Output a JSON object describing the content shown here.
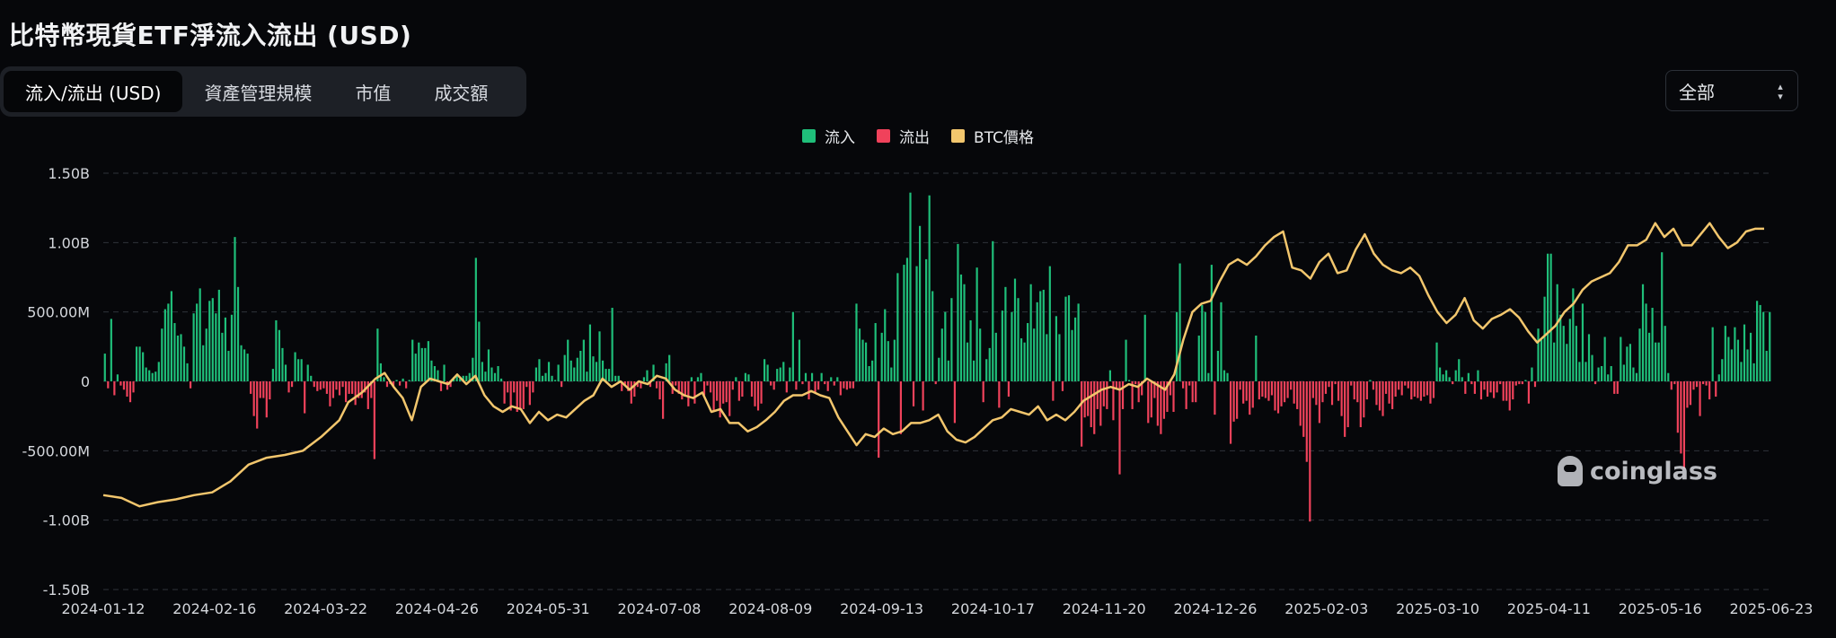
{
  "header": {
    "title": "比特幣現貨ETF淨流入流出 (USD)"
  },
  "tabs": [
    {
      "label": "流入/流出 (USD)",
      "active": true
    },
    {
      "label": "資產管理規模",
      "active": false
    },
    {
      "label": "市值",
      "active": false
    },
    {
      "label": "成交額",
      "active": false
    }
  ],
  "range_select": {
    "value": "全部"
  },
  "watermark": "coinglass",
  "colors": {
    "inflow": "#1fbf7a",
    "outflow": "#f0425b",
    "price": "#f2c66d",
    "grid": "#2f333b",
    "background": "#06070a"
  },
  "chart_data": {
    "type": "bar",
    "legend": [
      {
        "name": "流入",
        "color": "#1fbf7a"
      },
      {
        "name": "流出",
        "color": "#f0425b"
      },
      {
        "name": "BTC價格",
        "color": "#f2c66d"
      }
    ],
    "legend_position": "top-center",
    "grid": true,
    "ylim": [
      -1500000000,
      1500000000
    ],
    "y_ticks": [
      {
        "value": 1500000000,
        "label": "1.50B"
      },
      {
        "value": 1000000000,
        "label": "1.00B"
      },
      {
        "value": 500000000,
        "label": "500.00M"
      },
      {
        "value": 0,
        "label": "0"
      },
      {
        "value": -500000000,
        "label": "-500.00M"
      },
      {
        "value": -1000000000,
        "label": "-1.00B"
      },
      {
        "value": -1500000000,
        "label": "-1.50B"
      }
    ],
    "x_ticks": [
      "2024-01-12",
      "2024-02-16",
      "2024-03-22",
      "2024-04-26",
      "2024-05-31",
      "2024-07-08",
      "2024-08-09",
      "2024-09-13",
      "2024-10-17",
      "2024-11-20",
      "2024-12-26",
      "2025-02-03",
      "2025-03-10",
      "2025-04-11",
      "2025-05-16",
      "2025-06-23"
    ],
    "flows_musd": [
      200,
      -50,
      450,
      -100,
      50,
      -30,
      -60,
      -110,
      -150,
      -80,
      250,
      250,
      210,
      100,
      80,
      60,
      70,
      140,
      380,
      520,
      560,
      650,
      420,
      330,
      340,
      250,
      130,
      -50,
      490,
      560,
      670,
      260,
      380,
      580,
      600,
      490,
      660,
      350,
      460,
      220,
      480,
      1040,
      680,
      260,
      230,
      200,
      -90,
      -250,
      -340,
      -120,
      -120,
      -260,
      -130,
      90,
      440,
      370,
      240,
      120,
      -80,
      -40,
      210,
      160,
      160,
      -230,
      120,
      40,
      -40,
      -70,
      -60,
      -50,
      -90,
      -180,
      -120,
      -60,
      -100,
      -40,
      -150,
      -90,
      -90,
      -170,
      -120,
      -120,
      -80,
      -200,
      -120,
      -560,
      380,
      130,
      30,
      -40,
      -20,
      -40,
      10,
      -30,
      20,
      -50,
      10,
      300,
      200,
      280,
      240,
      240,
      290,
      150,
      110,
      80,
      -70,
      120,
      -60,
      -40,
      30,
      50,
      20,
      40,
      40,
      60,
      170,
      890,
      430,
      140,
      70,
      230,
      100,
      60,
      110,
      20,
      -160,
      -80,
      -210,
      -80,
      -220,
      -200,
      -200,
      -40,
      -170,
      -80,
      100,
      160,
      40,
      60,
      140,
      40,
      10,
      120,
      -40,
      190,
      300,
      150,
      100,
      170,
      220,
      300,
      70,
      410,
      180,
      140,
      360,
      150,
      90,
      90,
      530,
      40,
      40,
      -70,
      -30,
      -70,
      -160,
      -110,
      -40,
      -50,
      30,
      80,
      -40,
      120,
      -50,
      -130,
      -270,
      130,
      190,
      -90,
      -30,
      -90,
      -130,
      -110,
      -180,
      30,
      -160,
      30,
      60,
      -100,
      -30,
      -80,
      -220,
      -140,
      -260,
      -160,
      -150,
      -250,
      -60,
      30,
      -140,
      -110,
      60,
      50,
      -110,
      -180,
      -210,
      -160,
      160,
      120,
      -30,
      -60,
      90,
      100,
      140,
      -80,
      100,
      500,
      -60,
      300,
      -20,
      60,
      -130,
      60,
      -80,
      -60,
      60,
      -20,
      -70,
      30,
      -30,
      30,
      -100,
      -50,
      -60,
      -50,
      -50,
      560,
      380,
      300,
      280,
      110,
      150,
      420,
      -550,
      350,
      520,
      290,
      100,
      300,
      780,
      -380,
      840,
      890,
      1360,
      -180,
      830,
      1120,
      -210,
      880,
      1340,
      650,
      -20,
      170,
      380,
      500,
      150,
      600,
      -300,
      990,
      770,
      700,
      280,
      440,
      150,
      820,
      380,
      -150,
      160,
      240,
      1010,
      350,
      -190,
      510,
      680,
      -110,
      500,
      740,
      600,
      310,
      280,
      420,
      700,
      380,
      570,
      650,
      660,
      340,
      830,
      -140,
      470,
      340,
      -70,
      610,
      620,
      370,
      460,
      560,
      -470,
      -260,
      -250,
      -330,
      -380,
      -200,
      -320,
      -180,
      -200,
      80,
      -280,
      -50,
      -670,
      -200,
      300,
      10,
      -200,
      -20,
      -150,
      -100,
      480,
      -300,
      -260,
      -120,
      -320,
      -380,
      -270,
      -220,
      -100,
      -220,
      500,
      850,
      -50,
      -200,
      -30,
      -150,
      -150,
      330,
      550,
      500,
      60,
      840,
      -240,
      220,
      570,
      80,
      60,
      -450,
      -290,
      -270,
      -60,
      -160,
      -140,
      -240,
      -190,
      330,
      -130,
      -110,
      -120,
      -140,
      -100,
      -210,
      -230,
      -180,
      -150,
      -120,
      -60,
      -160,
      -200,
      -320,
      -400,
      -580,
      -1010,
      -120,
      -170,
      -300,
      -150,
      -90,
      -40,
      -170,
      -20,
      -140,
      -250,
      -400,
      -330,
      -30,
      -130,
      -150,
      -330,
      -260,
      -130,
      10,
      -60,
      -170,
      -210,
      -250,
      -90,
      -160,
      -200,
      -110,
      -60,
      -100,
      -30,
      -50,
      -130,
      -110,
      -120,
      -140,
      -110,
      -100,
      -160,
      -120,
      280,
      100,
      50,
      80,
      30,
      -20,
      80,
      160,
      30,
      -90,
      60,
      -20,
      -90,
      80,
      -130,
      -60,
      -110,
      -80,
      -120,
      -80,
      -20,
      -140,
      -140,
      -210,
      -130,
      -30,
      -20,
      -20,
      10,
      -160,
      100,
      -40,
      380,
      300,
      610,
      920,
      920,
      280,
      700,
      480,
      400,
      270,
      450,
      670,
      400,
      140,
      560,
      140,
      340,
      190,
      -20,
      100,
      110,
      320,
      50,
      110,
      -90,
      -90,
      320,
      120,
      250,
      270,
      100,
      60,
      380,
      700,
      560,
      350,
      530,
      280,
      280,
      930,
      400,
      60,
      -60,
      -20,
      -370,
      -520,
      -630,
      -190,
      -170,
      -60,
      -40,
      -250,
      -20,
      -30,
      -130,
      390,
      -110,
      50,
      160,
      400,
      320,
      230,
      390,
      300,
      140,
      410,
      230,
      350,
      130,
      580,
      550,
      500,
      220,
      500
    ],
    "btc_price": [
      [
        0,
        -0.82
      ],
      [
        4,
        -0.84
      ],
      [
        8,
        -0.9
      ],
      [
        12,
        -0.87
      ],
      [
        16,
        -0.85
      ],
      [
        20,
        -0.82
      ],
      [
        24,
        -0.8
      ],
      [
        28,
        -0.72
      ],
      [
        32,
        -0.6
      ],
      [
        36,
        -0.55
      ],
      [
        40,
        -0.53
      ],
      [
        44,
        -0.5
      ],
      [
        48,
        -0.4
      ],
      [
        52,
        -0.28
      ],
      [
        54,
        -0.15
      ],
      [
        57,
        -0.08
      ],
      [
        60,
        0.02
      ],
      [
        62,
        0.06
      ],
      [
        64,
        -0.04
      ],
      [
        66,
        -0.12
      ],
      [
        68,
        -0.28
      ],
      [
        70,
        -0.04
      ],
      [
        72,
        0.02
      ],
      [
        74,
        0.0
      ],
      [
        76,
        -0.02
      ],
      [
        78,
        0.05
      ],
      [
        80,
        -0.02
      ],
      [
        82,
        0.04
      ],
      [
        84,
        -0.1
      ],
      [
        86,
        -0.18
      ],
      [
        88,
        -0.22
      ],
      [
        90,
        -0.18
      ],
      [
        92,
        -0.2
      ],
      [
        94,
        -0.3
      ],
      [
        96,
        -0.22
      ],
      [
        98,
        -0.28
      ],
      [
        100,
        -0.24
      ],
      [
        102,
        -0.26
      ],
      [
        104,
        -0.2
      ],
      [
        106,
        -0.14
      ],
      [
        108,
        -0.1
      ],
      [
        110,
        0.02
      ],
      [
        112,
        -0.04
      ],
      [
        114,
        0.0
      ],
      [
        116,
        -0.06
      ],
      [
        118,
        0.0
      ],
      [
        120,
        -0.02
      ],
      [
        122,
        0.04
      ],
      [
        124,
        0.02
      ],
      [
        126,
        -0.06
      ],
      [
        128,
        -0.1
      ],
      [
        130,
        -0.12
      ],
      [
        132,
        -0.08
      ],
      [
        134,
        -0.22
      ],
      [
        136,
        -0.2
      ],
      [
        138,
        -0.3
      ],
      [
        140,
        -0.3
      ],
      [
        142,
        -0.36
      ],
      [
        144,
        -0.33
      ],
      [
        146,
        -0.28
      ],
      [
        148,
        -0.22
      ],
      [
        150,
        -0.14
      ],
      [
        152,
        -0.1
      ],
      [
        154,
        -0.1
      ],
      [
        156,
        -0.07
      ],
      [
        158,
        -0.1
      ],
      [
        160,
        -0.12
      ],
      [
        162,
        -0.26
      ],
      [
        164,
        -0.36
      ],
      [
        166,
        -0.46
      ],
      [
        168,
        -0.38
      ],
      [
        170,
        -0.4
      ],
      [
        172,
        -0.34
      ],
      [
        174,
        -0.38
      ],
      [
        176,
        -0.36
      ],
      [
        178,
        -0.3
      ],
      [
        180,
        -0.3
      ],
      [
        182,
        -0.28
      ],
      [
        184,
        -0.24
      ],
      [
        186,
        -0.36
      ],
      [
        188,
        -0.42
      ],
      [
        190,
        -0.44
      ],
      [
        192,
        -0.4
      ],
      [
        194,
        -0.34
      ],
      [
        196,
        -0.28
      ],
      [
        198,
        -0.26
      ],
      [
        200,
        -0.2
      ],
      [
        202,
        -0.22
      ],
      [
        204,
        -0.24
      ],
      [
        206,
        -0.18
      ],
      [
        208,
        -0.28
      ],
      [
        210,
        -0.24
      ],
      [
        212,
        -0.28
      ],
      [
        214,
        -0.22
      ],
      [
        216,
        -0.14
      ],
      [
        218,
        -0.1
      ],
      [
        220,
        -0.06
      ],
      [
        222,
        -0.04
      ],
      [
        224,
        -0.06
      ],
      [
        226,
        -0.02
      ],
      [
        228,
        -0.04
      ],
      [
        230,
        0.02
      ],
      [
        232,
        -0.02
      ],
      [
        234,
        -0.06
      ],
      [
        236,
        0.05
      ],
      [
        238,
        0.3
      ],
      [
        240,
        0.5
      ],
      [
        242,
        0.56
      ],
      [
        244,
        0.58
      ],
      [
        246,
        0.72
      ],
      [
        248,
        0.84
      ],
      [
        250,
        0.88
      ],
      [
        252,
        0.84
      ],
      [
        254,
        0.9
      ],
      [
        256,
        0.98
      ],
      [
        258,
        1.04
      ],
      [
        260,
        1.08
      ],
      [
        262,
        0.82
      ],
      [
        264,
        0.8
      ],
      [
        266,
        0.74
      ],
      [
        268,
        0.86
      ],
      [
        270,
        0.92
      ],
      [
        272,
        0.78
      ],
      [
        274,
        0.8
      ],
      [
        276,
        0.95
      ],
      [
        278,
        1.06
      ],
      [
        280,
        0.92
      ],
      [
        282,
        0.84
      ],
      [
        284,
        0.8
      ],
      [
        286,
        0.78
      ],
      [
        288,
        0.82
      ],
      [
        290,
        0.76
      ],
      [
        292,
        0.62
      ],
      [
        294,
        0.5
      ],
      [
        296,
        0.42
      ],
      [
        298,
        0.48
      ],
      [
        300,
        0.6
      ],
      [
        302,
        0.44
      ],
      [
        304,
        0.38
      ],
      [
        306,
        0.45
      ],
      [
        308,
        0.48
      ],
      [
        310,
        0.52
      ],
      [
        312,
        0.46
      ],
      [
        314,
        0.36
      ],
      [
        316,
        0.28
      ],
      [
        318,
        0.34
      ],
      [
        320,
        0.4
      ],
      [
        322,
        0.5
      ],
      [
        324,
        0.56
      ],
      [
        326,
        0.66
      ],
      [
        328,
        0.72
      ],
      [
        330,
        0.75
      ],
      [
        332,
        0.78
      ],
      [
        334,
        0.86
      ],
      [
        336,
        0.98
      ],
      [
        338,
        0.98
      ],
      [
        340,
        1.02
      ],
      [
        342,
        1.14
      ],
      [
        344,
        1.04
      ],
      [
        346,
        1.1
      ],
      [
        348,
        0.98
      ],
      [
        350,
        0.98
      ],
      [
        352,
        1.06
      ],
      [
        354,
        1.14
      ],
      [
        356,
        1.04
      ],
      [
        358,
        0.96
      ],
      [
        360,
        1.0
      ],
      [
        362,
        1.08
      ],
      [
        364,
        1.1
      ],
      [
        366,
        1.1
      ]
    ],
    "btc_price_note": "BTC價格 line plotted against the left axis scale in billions"
  }
}
